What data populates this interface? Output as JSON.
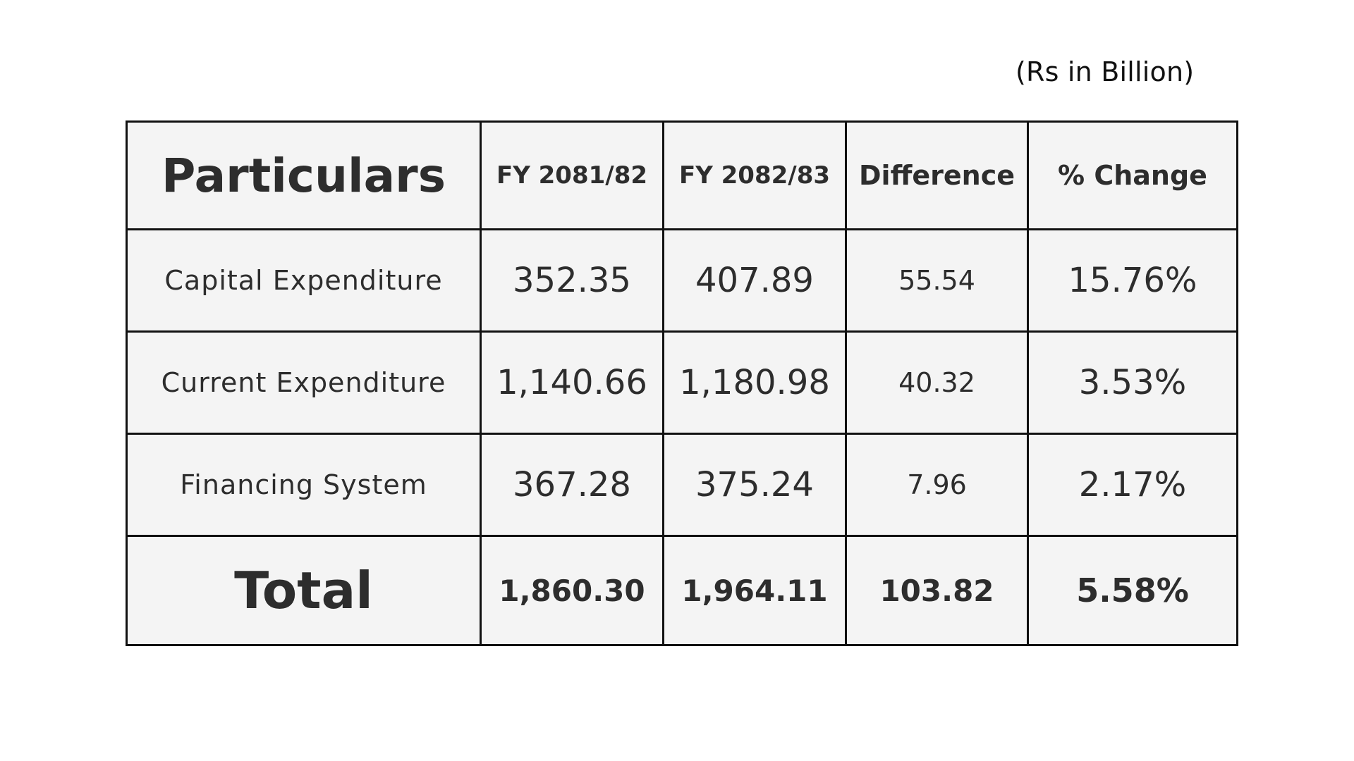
{
  "unit_note": "(Rs in Billion)",
  "table": {
    "headers": [
      "Particulars",
      "FY 2081/82",
      "FY 2082/83",
      "Difference",
      "% Change"
    ],
    "rows": [
      [
        "Capital Expenditure",
        "352.35",
        "407.89",
        "55.54",
        "15.76%"
      ],
      [
        "Current Expenditure",
        "1,140.66",
        "1,180.98",
        "40.32",
        "3.53%"
      ],
      [
        "Financing System",
        "367.28",
        "375.24",
        "7.96",
        "2.17%"
      ]
    ],
    "total": [
      "Total",
      "1,860.30",
      "1,964.11",
      "103.82",
      "5.58%"
    ]
  },
  "colors": {
    "cell_background": "#f4f4f4",
    "border": "#111111",
    "text": "#2d2d2d"
  }
}
